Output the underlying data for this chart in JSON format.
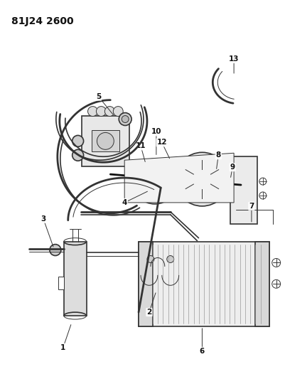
{
  "title": "81J24 2600",
  "bg_color": "#ffffff",
  "line_color": "#333333",
  "label_color": "#111111",
  "label_fontsize": 7.5,
  "label_fontweight": "bold",
  "title_fontsize": 10,
  "title_fontweight": "bold"
}
